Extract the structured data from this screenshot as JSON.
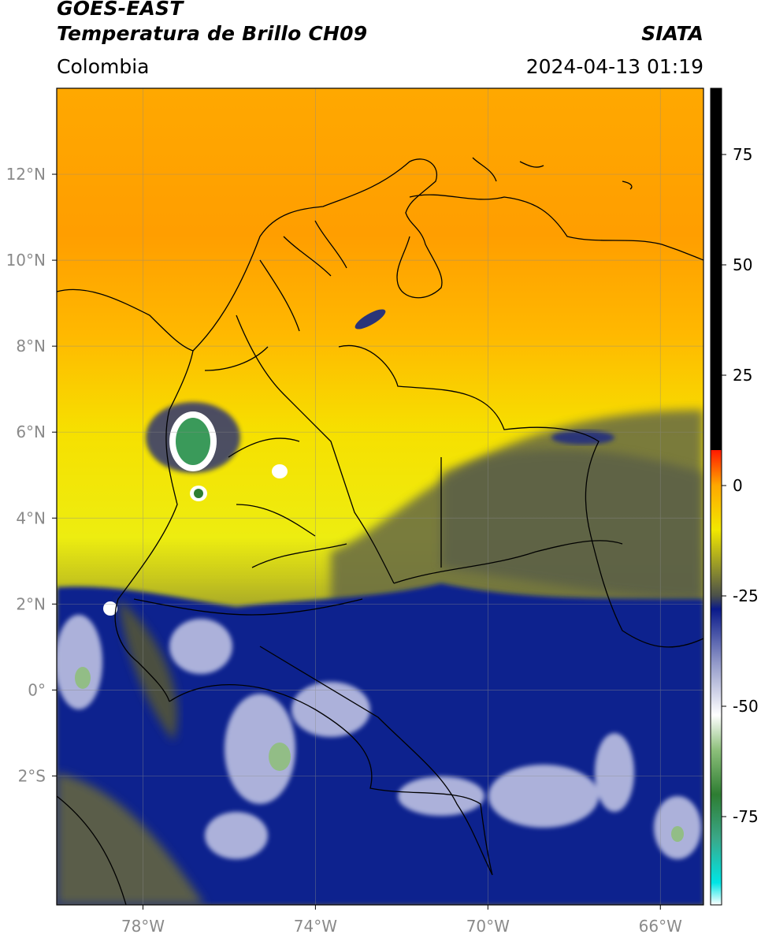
{
  "header": {
    "satellite": "GOES-EAST",
    "product": "Temperatura de Brillo CH09",
    "region": "Colombia",
    "source": "SIATA",
    "datetime": "2024-04-13 01:19"
  },
  "map": {
    "lon_range": [
      -80,
      -65
    ],
    "lat_range": [
      -5,
      14
    ],
    "lon_ticks": [
      {
        "value": -78,
        "label": "78°W"
      },
      {
        "value": -74,
        "label": "74°W"
      },
      {
        "value": -70,
        "label": "70°W"
      },
      {
        "value": -66,
        "label": "66°W"
      }
    ],
    "lat_ticks": [
      {
        "value": 12,
        "label": "12°N"
      },
      {
        "value": 10,
        "label": "10°N"
      },
      {
        "value": 8,
        "label": "8°N"
      },
      {
        "value": 6,
        "label": "6°N"
      },
      {
        "value": 4,
        "label": "4°N"
      },
      {
        "value": 2,
        "label": "2°N"
      },
      {
        "value": 0,
        "label": "0°"
      },
      {
        "value": -2,
        "label": "2°S"
      }
    ],
    "gridlines": true
  },
  "colorbar": {
    "range": [
      -95,
      90
    ],
    "ticks": [
      {
        "value": 75,
        "label": "75"
      },
      {
        "value": 50,
        "label": "50"
      },
      {
        "value": 25,
        "label": "25"
      },
      {
        "value": 0,
        "label": "0"
      },
      {
        "value": -25,
        "label": "-25"
      },
      {
        "value": -50,
        "label": "-50"
      },
      {
        "value": -75,
        "label": "-75"
      }
    ],
    "stops": [
      {
        "value": -95,
        "color": "#ffffff"
      },
      {
        "value": -90,
        "color": "#00e5e5"
      },
      {
        "value": -80,
        "color": "#3aa889"
      },
      {
        "value": -70,
        "color": "#2e7d32"
      },
      {
        "value": -60,
        "color": "#8cbf7a"
      },
      {
        "value": -52,
        "color": "#ffffff"
      },
      {
        "value": -40,
        "color": "#9097c8"
      },
      {
        "value": -28,
        "color": "#0a1a8a"
      },
      {
        "value": -25,
        "color": "#4a4f4a"
      },
      {
        "value": -18,
        "color": "#9a9a28"
      },
      {
        "value": -10,
        "color": "#f2e800"
      },
      {
        "value": 0,
        "color": "#ffa800"
      },
      {
        "value": 8,
        "color": "#ff1a00"
      },
      {
        "value": 8.01,
        "color": "#000000"
      },
      {
        "value": 90,
        "color": "#000000"
      }
    ]
  }
}
